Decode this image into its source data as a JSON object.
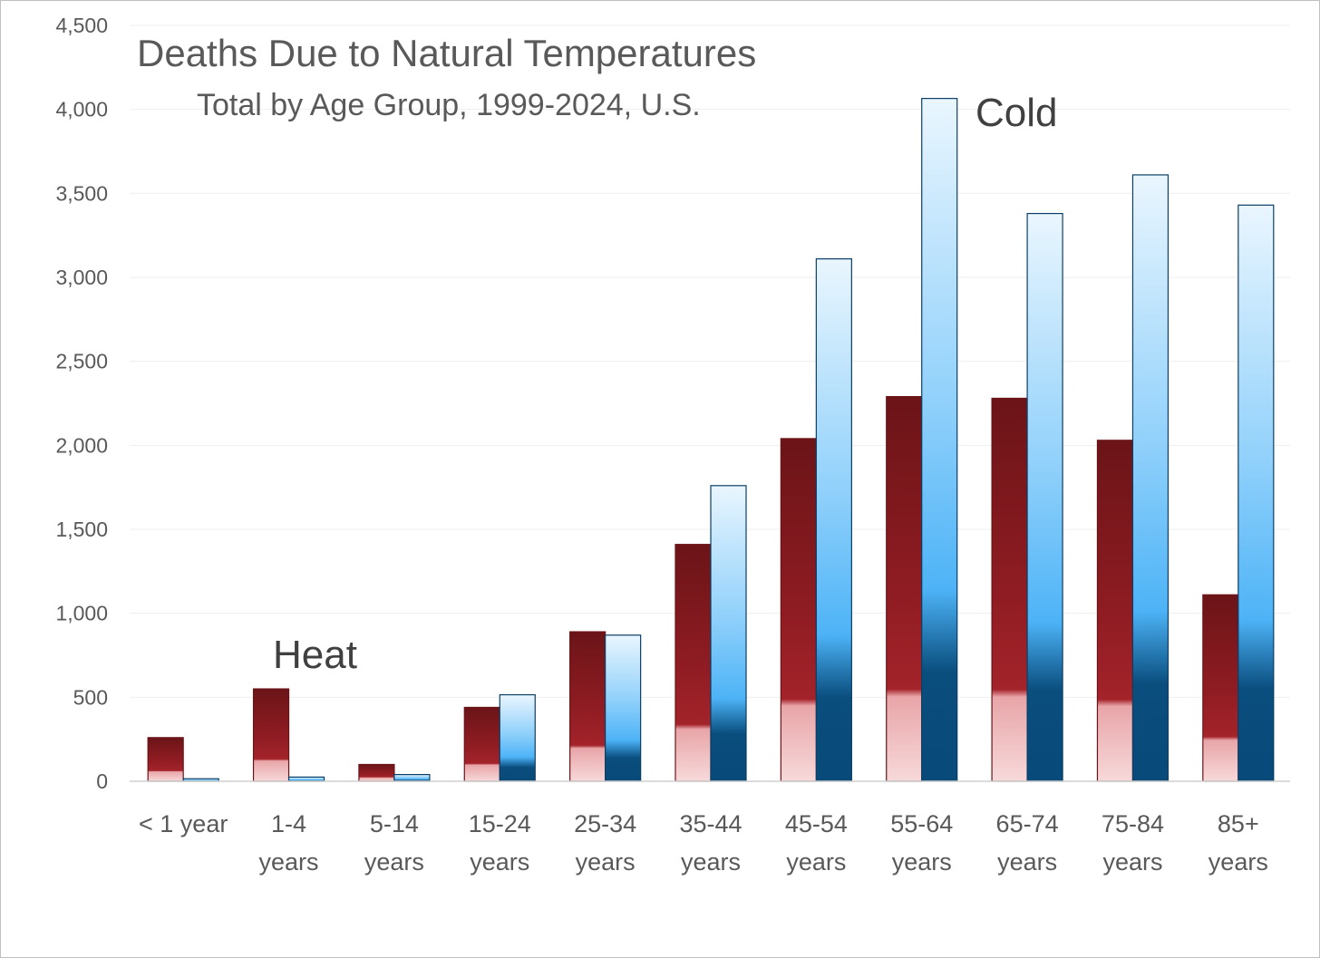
{
  "chart_data": {
    "type": "bar",
    "title": "Deaths Due to Natural Temperatures",
    "subtitle": "Total by Age Group, 1999-2024, U.S.",
    "xlabel": "",
    "ylabel": "",
    "ylim": [
      0,
      4500
    ],
    "yticks": [
      0,
      500,
      1000,
      1500,
      2000,
      2500,
      3000,
      3500,
      4000,
      4500
    ],
    "ytick_labels": [
      "0",
      "500",
      "1,000",
      "1,500",
      "2,000",
      "2,500",
      "3,000",
      "3,500",
      "4,000",
      "4,500"
    ],
    "grid": true,
    "legend": "none",
    "categories": [
      [
        "< 1 year"
      ],
      [
        "1-4",
        "years"
      ],
      [
        "5-14",
        "years"
      ],
      [
        "15-24",
        "years"
      ],
      [
        "25-34",
        "years"
      ],
      [
        "35-44",
        "years"
      ],
      [
        "45-54",
        "years"
      ],
      [
        "55-64",
        "years"
      ],
      [
        "65-74",
        "years"
      ],
      [
        "75-84",
        "years"
      ],
      [
        "85+",
        "years"
      ]
    ],
    "series": [
      {
        "label": "Heat",
        "color": "#8b1a1f",
        "values": [
          260,
          550,
          100,
          440,
          890,
          1410,
          2040,
          2290,
          2280,
          2030,
          1110
        ]
      },
      {
        "label": "Cold",
        "color": "#5bb8f5",
        "values": [
          15,
          25,
          40,
          515,
          870,
          1760,
          3110,
          4065,
          3380,
          3610,
          3430
        ]
      }
    ]
  }
}
